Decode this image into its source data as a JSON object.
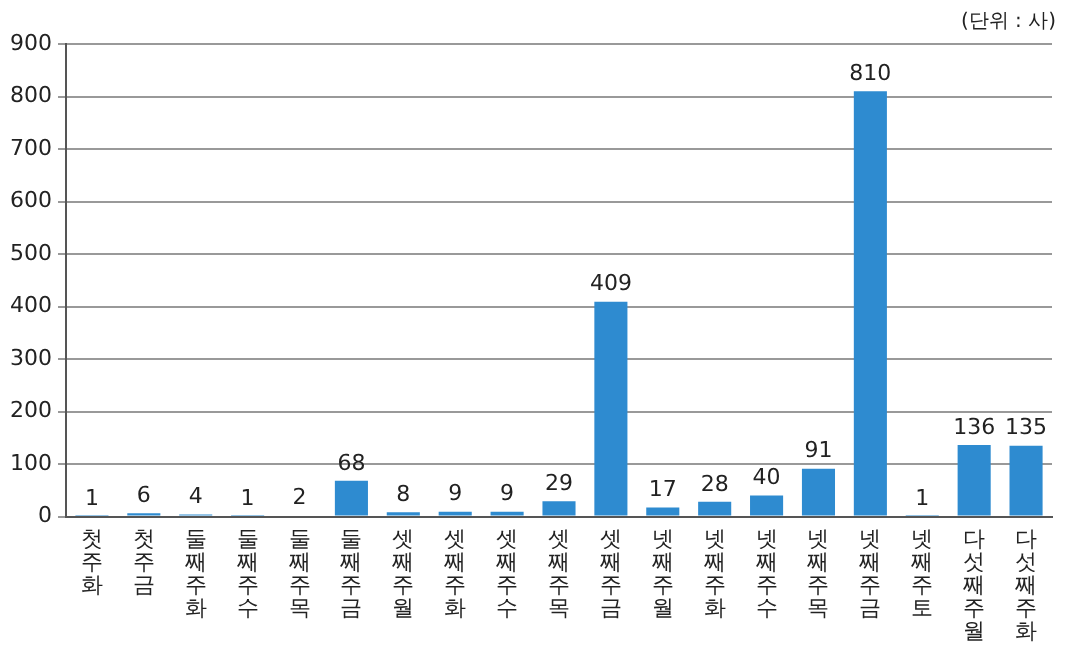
{
  "chart_data": {
    "type": "bar",
    "categories": [
      "첫주 화",
      "첫주 금",
      "둘째주 화",
      "둘째주 수",
      "둘째주 목",
      "둘째주 금",
      "셋째주 월",
      "셋째주 화",
      "셋째주 수",
      "셋째주 목",
      "셋째주 금",
      "넷째주 월",
      "넷째주 화",
      "넷째주 수",
      "넷째주 목",
      "넷째주 금",
      "넷째주 토",
      "다섯째주 월",
      "다섯째주 화"
    ],
    "values": [
      1,
      6,
      4,
      1,
      2,
      68,
      8,
      9,
      9,
      29,
      409,
      17,
      28,
      40,
      91,
      810,
      1,
      136,
      135
    ],
    "color": "#2e8bd0",
    "ylim": [
      0,
      900
    ],
    "yticks": [
      0,
      100,
      200,
      300,
      400,
      500,
      600,
      700,
      800,
      900
    ],
    "grid": "y",
    "data_labels": true,
    "legend": false,
    "annotations": [
      "(단위 : 사)"
    ]
  }
}
